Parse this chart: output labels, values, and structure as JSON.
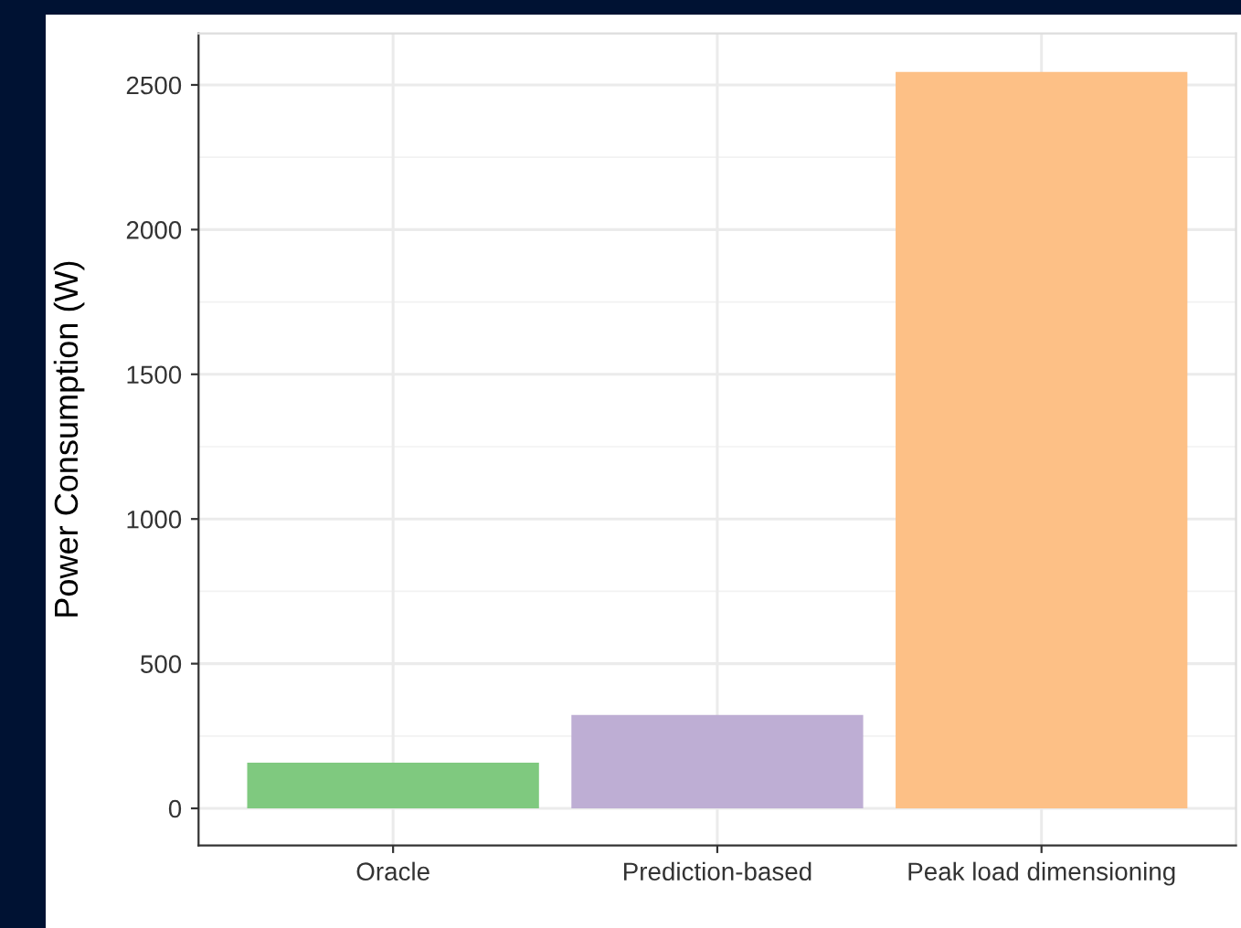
{
  "chart_data": {
    "type": "bar",
    "ylabel": "Power Consumption (W)",
    "categories": [
      "Oracle",
      "Prediction-based",
      "Peak load dimensioning"
    ],
    "values": [
      158,
      323,
      2545
    ],
    "colors": [
      "#7fc97f",
      "#beaed4",
      "#fdc086"
    ],
    "ylim": [
      -128,
      2678
    ],
    "yticks": [
      0,
      500,
      1000,
      1500,
      2000,
      2500
    ],
    "grid": true,
    "legend": false
  }
}
